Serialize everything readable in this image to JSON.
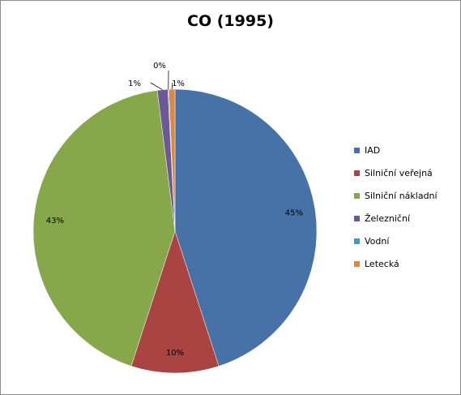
{
  "chart_data": {
    "type": "pie",
    "title": "CO (1995)",
    "categories": [
      "IAD",
      "Silniční veřejná",
      "Silniční nákladní",
      "Železniční",
      "Vodní",
      "Letecká"
    ],
    "values": [
      45.0,
      10.0,
      43.0,
      1.2,
      0.1,
      0.7
    ],
    "data_labels": [
      "45%",
      "10%",
      "43%",
      "1%",
      "0%",
      "1%"
    ],
    "colors": [
      "#4672A8",
      "#A94442",
      "#87A74B",
      "#6E5797",
      "#3E9DB5",
      "#E0883A"
    ],
    "legend_position": "right",
    "start_angle": "top",
    "direction": "clockwise"
  }
}
